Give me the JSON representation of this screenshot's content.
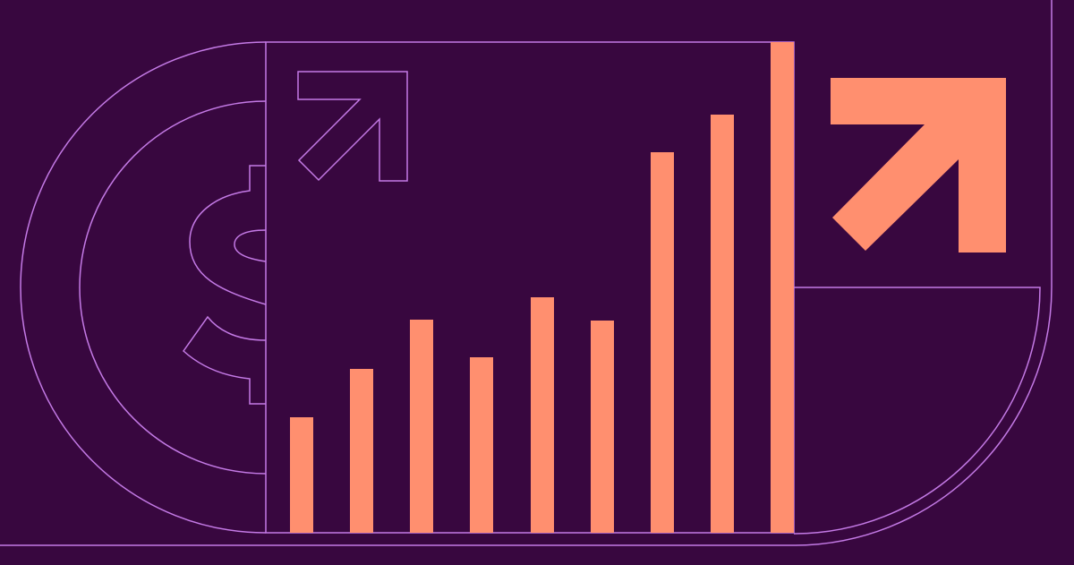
{
  "colors": {
    "background": "#38073f",
    "outline": "#c47ae6",
    "accent": "#ff8f6f"
  },
  "icons": {
    "dollar": "dollar-sign-icon",
    "arrow_outline": "arrow-up-right-icon",
    "arrow_filled": "arrow-up-right-icon"
  }
}
